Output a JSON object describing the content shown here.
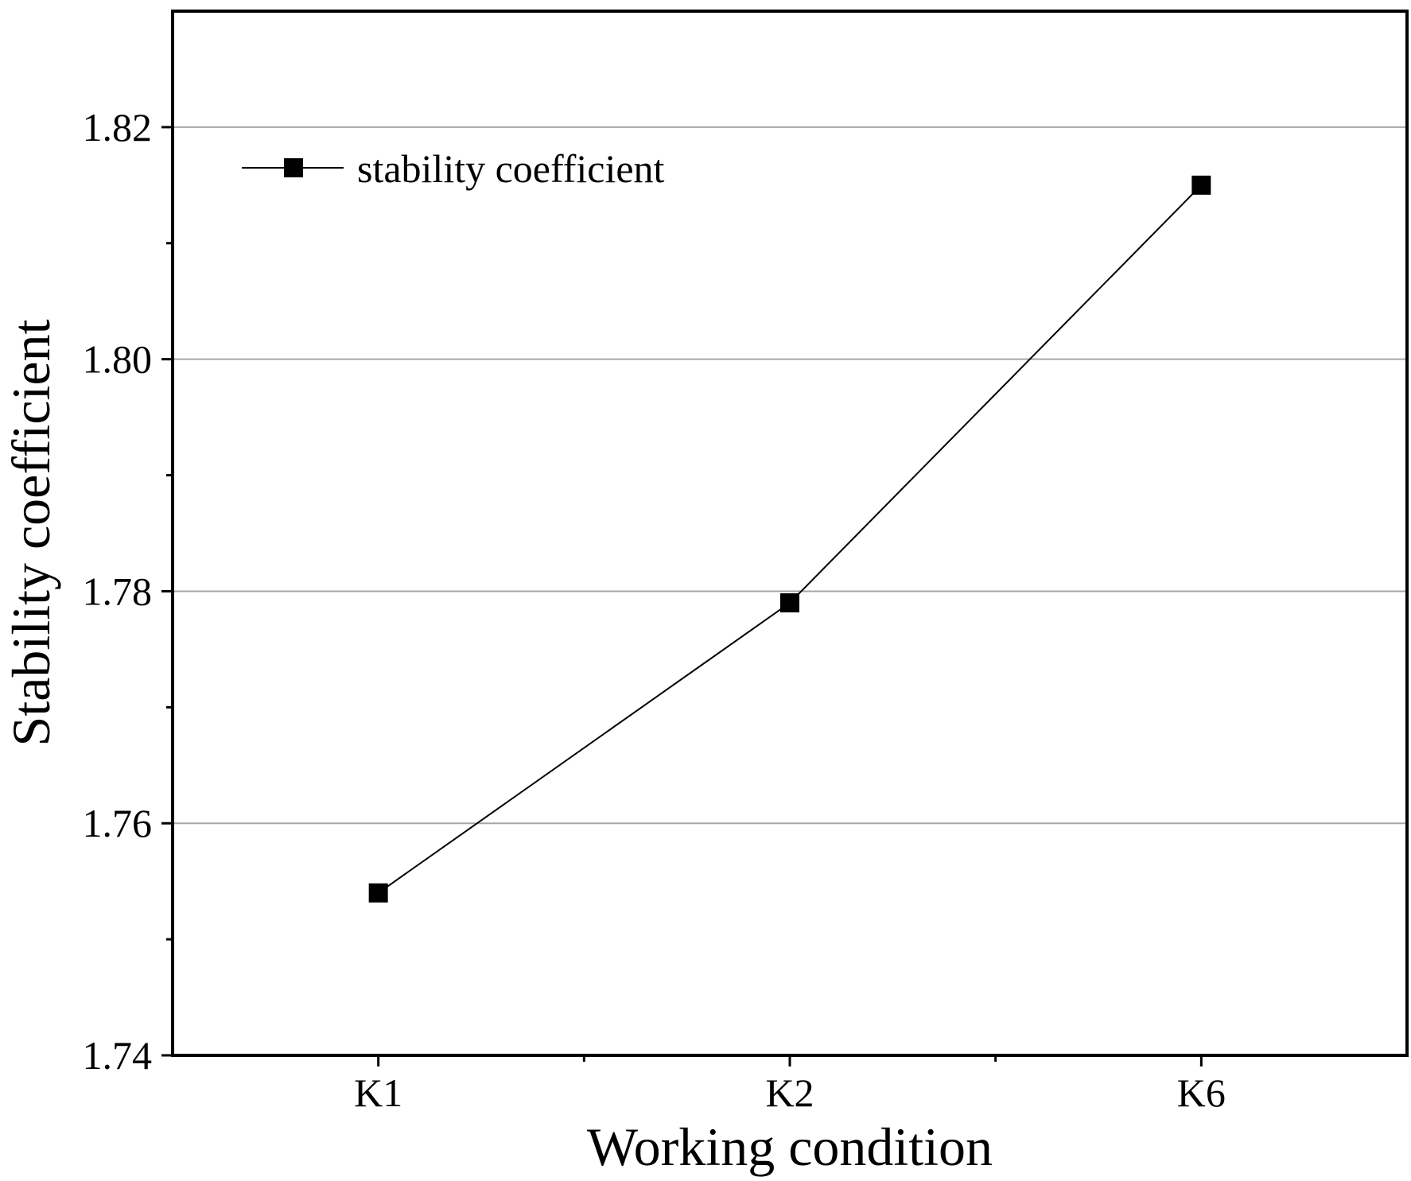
{
  "chart_data": {
    "type": "line",
    "xlabel": "Working condition",
    "ylabel": "Stability coefficient",
    "categories": [
      "K1",
      "K2",
      "K6"
    ],
    "series": [
      {
        "name": "stability coefficient",
        "values": [
          1.754,
          1.779,
          1.815
        ]
      }
    ],
    "ylim": [
      1.74,
      1.83
    ],
    "yticks": [
      1.74,
      1.76,
      1.78,
      1.8,
      1.82
    ],
    "ytick_labels": [
      "1.74",
      "1.76",
      "1.78",
      "1.80",
      "1.82"
    ],
    "grid": true,
    "legend": "top-left",
    "colors": {
      "line": "#000000",
      "grid": "#a6a6a6",
      "axis": "#000000"
    }
  }
}
